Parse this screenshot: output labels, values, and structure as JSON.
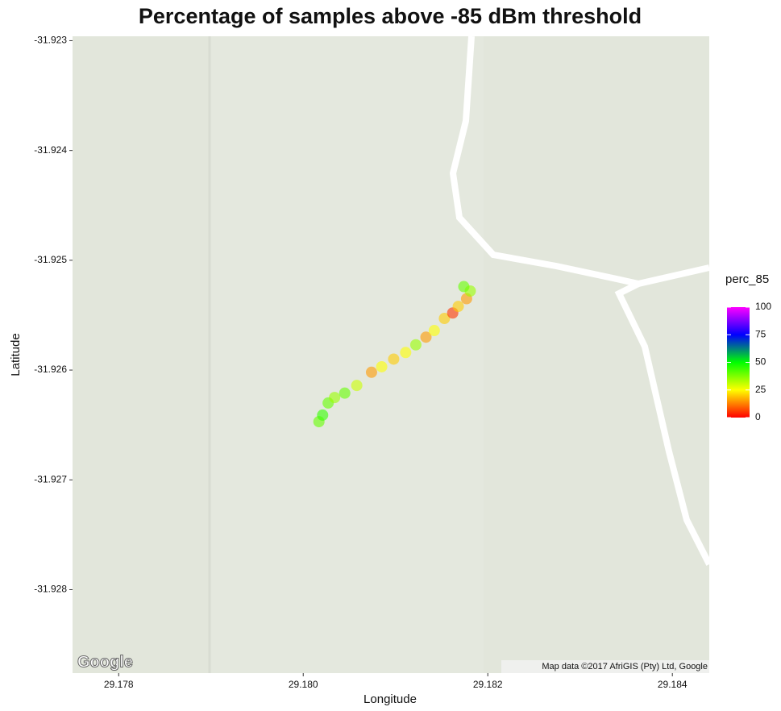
{
  "chart_data": {
    "type": "scatter",
    "title": "Percentage of samples above -85 dBm threshold",
    "x_label": "Longitude",
    "y_label": "Latitude",
    "legend_title": "perc_85",
    "map_logo": "Google",
    "map_attribution": "Map data ©2017 AfriGIS (Pty) Ltd, Google",
    "xlim": [
      29.1775,
      29.1844
    ],
    "ylim": [
      -31.92876,
      -31.92296
    ],
    "xticks": [
      29.178,
      {
        "value": 29.18,
        "label": "29.180"
      },
      29.182,
      29.184
    ],
    "yticks": [
      -31.923,
      -31.924,
      -31.925,
      -31.926,
      -31.927,
      -31.928
    ],
    "color_scale": [
      {
        "value": 0,
        "color": "#ff0000"
      },
      {
        "value": 25,
        "color": "#ffff00"
      },
      {
        "value": 50,
        "color": "#00ff00"
      },
      {
        "value": 75,
        "color": "#0000ff"
      },
      {
        "value": 100,
        "color": "#ff00ff"
      }
    ],
    "color_ticks": [
      0,
      25,
      50,
      75,
      100
    ],
    "x": [
      29.18017,
      29.18021,
      29.18027,
      29.18034,
      29.18045,
      29.18058,
      29.18074,
      29.18085,
      29.18098,
      29.18111,
      29.18122,
      29.18133,
      29.18142,
      29.18153,
      29.18162,
      29.18168,
      29.18177,
      29.18181,
      29.18174
    ],
    "y": [
      -31.92647,
      -31.92641,
      -31.9263,
      -31.92625,
      -31.92621,
      -31.92614,
      -31.92602,
      -31.92597,
      -31.9259,
      -31.92584,
      -31.92577,
      -31.9257,
      -31.92564,
      -31.92553,
      -31.92548,
      -31.92542,
      -31.92535,
      -31.92528,
      -31.92524
    ],
    "values": [
      40,
      45,
      40,
      35,
      40,
      30,
      15,
      25,
      20,
      25,
      35,
      15,
      25,
      20,
      5,
      20,
      15,
      35,
      40
    ]
  }
}
